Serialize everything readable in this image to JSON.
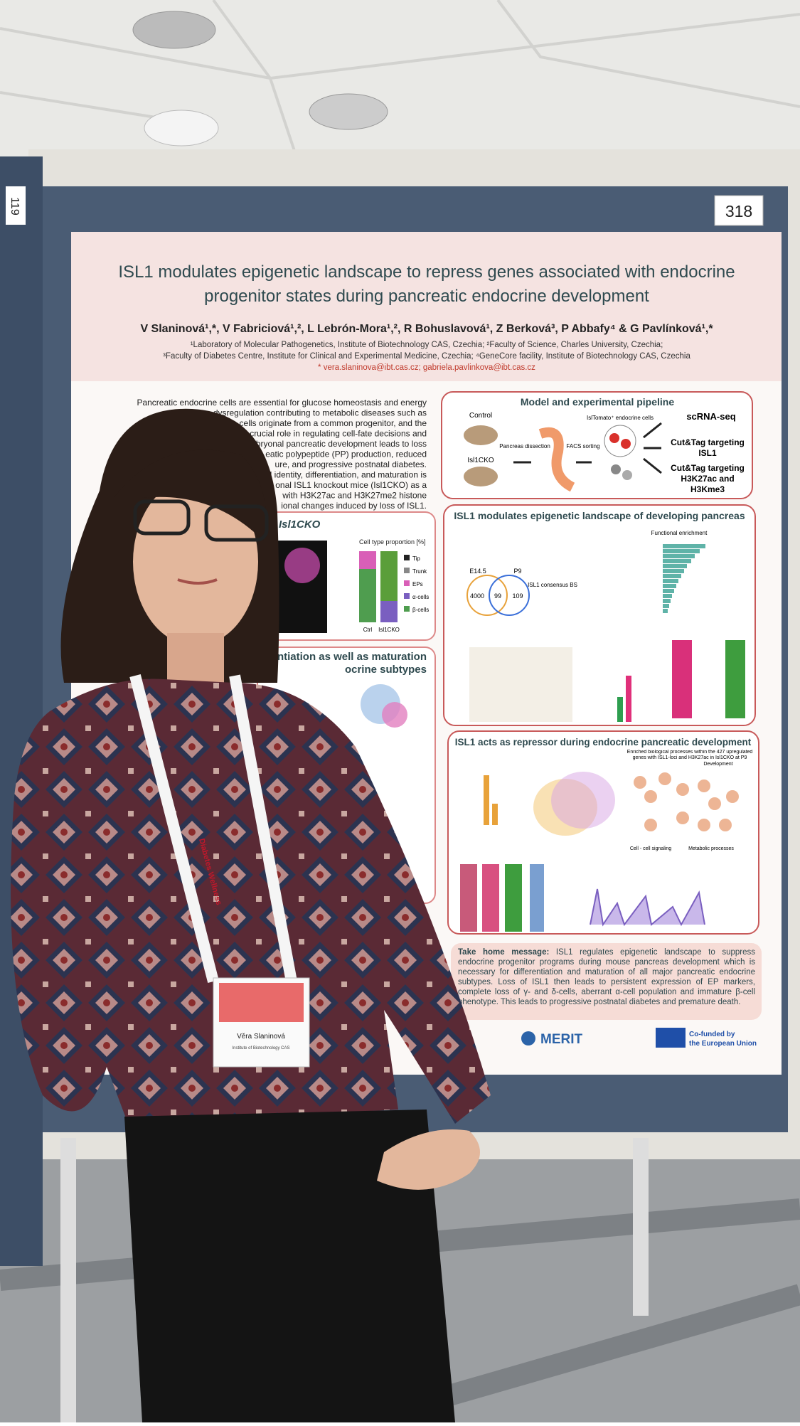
{
  "booth_number": "318",
  "side_label": "119",
  "poster": {
    "title": [
      "ISL1 modulates epigenetic landscape to repress genes associated with endocrine",
      "progenitor states during pancreatic endocrine development"
    ],
    "authors": "V Slaninová¹,*, V Fabriciová¹,², L Lebrón-Mora¹,², R Bohuslavová¹, Z Berková³, P Abbafy⁴ & G Pavlínková¹,*",
    "affiliations": [
      "¹Laboratory of Molecular Pathogenetics, Institute of Biotechnology CAS, Czechia; ²Faculty of Science, Charles University, Czechia;",
      "³Faculty of Diabetes Centre, Institute for Clinical and Experimental Medicine, Czechia; ⁴GeneCore facility, Institute of Biotechnology CAS, Czechia"
    ],
    "email": "* vera.slaninova@ibt.cas.cz; gabriela.pavlinkova@ibt.cas.cz",
    "intro": [
      "Pancreatic endocrine cells are essential for glucose homeostasis and energy",
      "dysregulation contributing to metabolic diseases such as",
      "ne cells originate from a common progenitor, and the",
      "crucial role in regulating cell-fate decisions and",
      "mbryonal pancreatic development leads to loss",
      "eatic polypeptide (PP) production, reduced",
      "ure, and progressive postnatal diabetes.",
      "ll identity, differentiation, and maturation is",
      "onal ISL1 knockout mice (Isl1CKO) as a",
      "with H3K27ac and H3K27me2 histone",
      "ional changes induced by loss of ISL1."
    ],
    "isl1cko_box": {
      "heading": "Isl1CKO",
      "legend_title": "Cell type proportion [%]",
      "legend": [
        "Tip",
        "Trunk",
        "EPs",
        "α-cells",
        "β-cells"
      ],
      "groups": [
        "Ctrl",
        "Isl1CKO"
      ]
    },
    "second_box_heading": [
      "ntiation as well as maturation",
      "ocrine subtypes"
    ],
    "pipeline": {
      "heading": "Model and experimental pipeline",
      "control": "Control",
      "cko": "Isl1CKO",
      "dissection": "Pancreas dissection",
      "sorting": "FACS sorting",
      "cells": "IslTomato⁺ endocrine cells",
      "outputs": [
        "scRNA-seq",
        "Cut&Tag targeting ISL1",
        "Cut&Tag targeting H3K27ac and H3Kme3"
      ]
    },
    "landscape": {
      "heading": "ISL1 modulates epigenetic landscape of developing pancreas",
      "venn": [
        "E14.5",
        "P9"
      ],
      "counts": [
        "4000",
        "99",
        "109"
      ],
      "enrichment": "Functional enrichment",
      "motif": "ISL1 consensus BS"
    },
    "repressor": {
      "heading": "ISL1 acts as repressor during endocrine pancreatic development",
      "subtitle": "Enriched biological processes within the 427 upregulated genes with ISL1-loci and H3K27ac in Isl1CKO at P9",
      "tags": [
        "Development",
        "Cell - cell signaling",
        "Metabolic processes"
      ]
    },
    "take_home": {
      "label": "Take home message:",
      "text": "ISL1 regulates epigenetic landscape to suppress endocrine progenitor programs during mouse pancreas development which is necessary for differentiation and maturation of all major pancreatic endocrine subtypes. Loss of ISL1 then leads to persistent expression of EP markers, complete loss of γ- and δ-cells, aberrant α-cell population and immature β-cell phenotype. This leads to progressive postnatal diabetes and premature death."
    },
    "logos": {
      "merit": "MERIT",
      "eu": [
        "Co-funded by",
        "the European Union"
      ]
    }
  },
  "badge": {
    "name": "Věra Slaninová",
    "institute": "Institute of Biotechnology CAS"
  },
  "lanyard": "Diabetes Wellness"
}
